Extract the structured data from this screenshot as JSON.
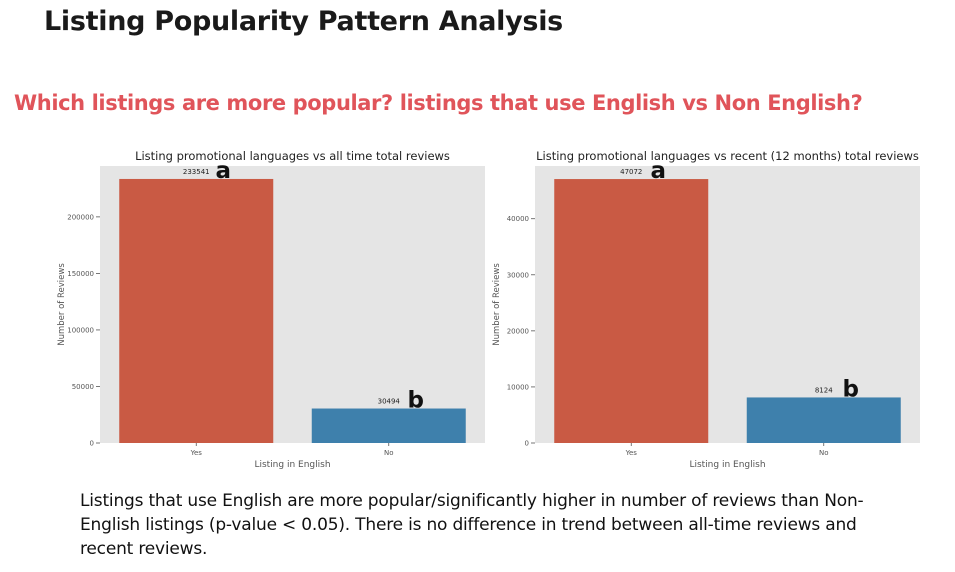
{
  "page": {
    "title": "Listing Popularity Pattern Analysis",
    "subtitle": "Which listings are more popular? listings that use English vs Non English?",
    "conclusion": "Listings that use English are more popular/significantly higher in number of reviews than Non-English listings (p-value <  0.05). There is no difference in trend between all-time reviews and recent reviews."
  },
  "colors": {
    "title": "#1a1a1a",
    "subtitle": "#e0545a",
    "plot_background": "#e5e5e5",
    "bar_yes": "#c95a44",
    "bar_no": "#3e80ac"
  },
  "chart_data": [
    {
      "type": "bar",
      "title": "Listing promotional languages vs all time total reviews",
      "xlabel": "Listing in English",
      "ylabel": "Number of Reviews",
      "categories": [
        "Yes",
        "No"
      ],
      "values": [
        233541,
        30494
      ],
      "data_labels": [
        "233541",
        "30494"
      ],
      "group_letters": [
        "a",
        "b"
      ],
      "bar_colors": [
        "#c95a44",
        "#3e80ac"
      ],
      "yticks": [
        0,
        50000,
        100000,
        150000,
        200000
      ],
      "ylim": [
        0,
        245000
      ],
      "grid": false
    },
    {
      "type": "bar",
      "title": "Listing promotional languages vs recent (12 months) total reviews",
      "xlabel": "Listing in English",
      "ylabel": "Number of Reviews",
      "categories": [
        "Yes",
        "No"
      ],
      "values": [
        47072,
        8124
      ],
      "data_labels": [
        "47072",
        "8124"
      ],
      "group_letters": [
        "a",
        "b"
      ],
      "bar_colors": [
        "#c95a44",
        "#3e80ac"
      ],
      "yticks": [
        0,
        10000,
        20000,
        30000,
        40000
      ],
      "ylim": [
        0,
        49400
      ],
      "grid": false
    }
  ]
}
